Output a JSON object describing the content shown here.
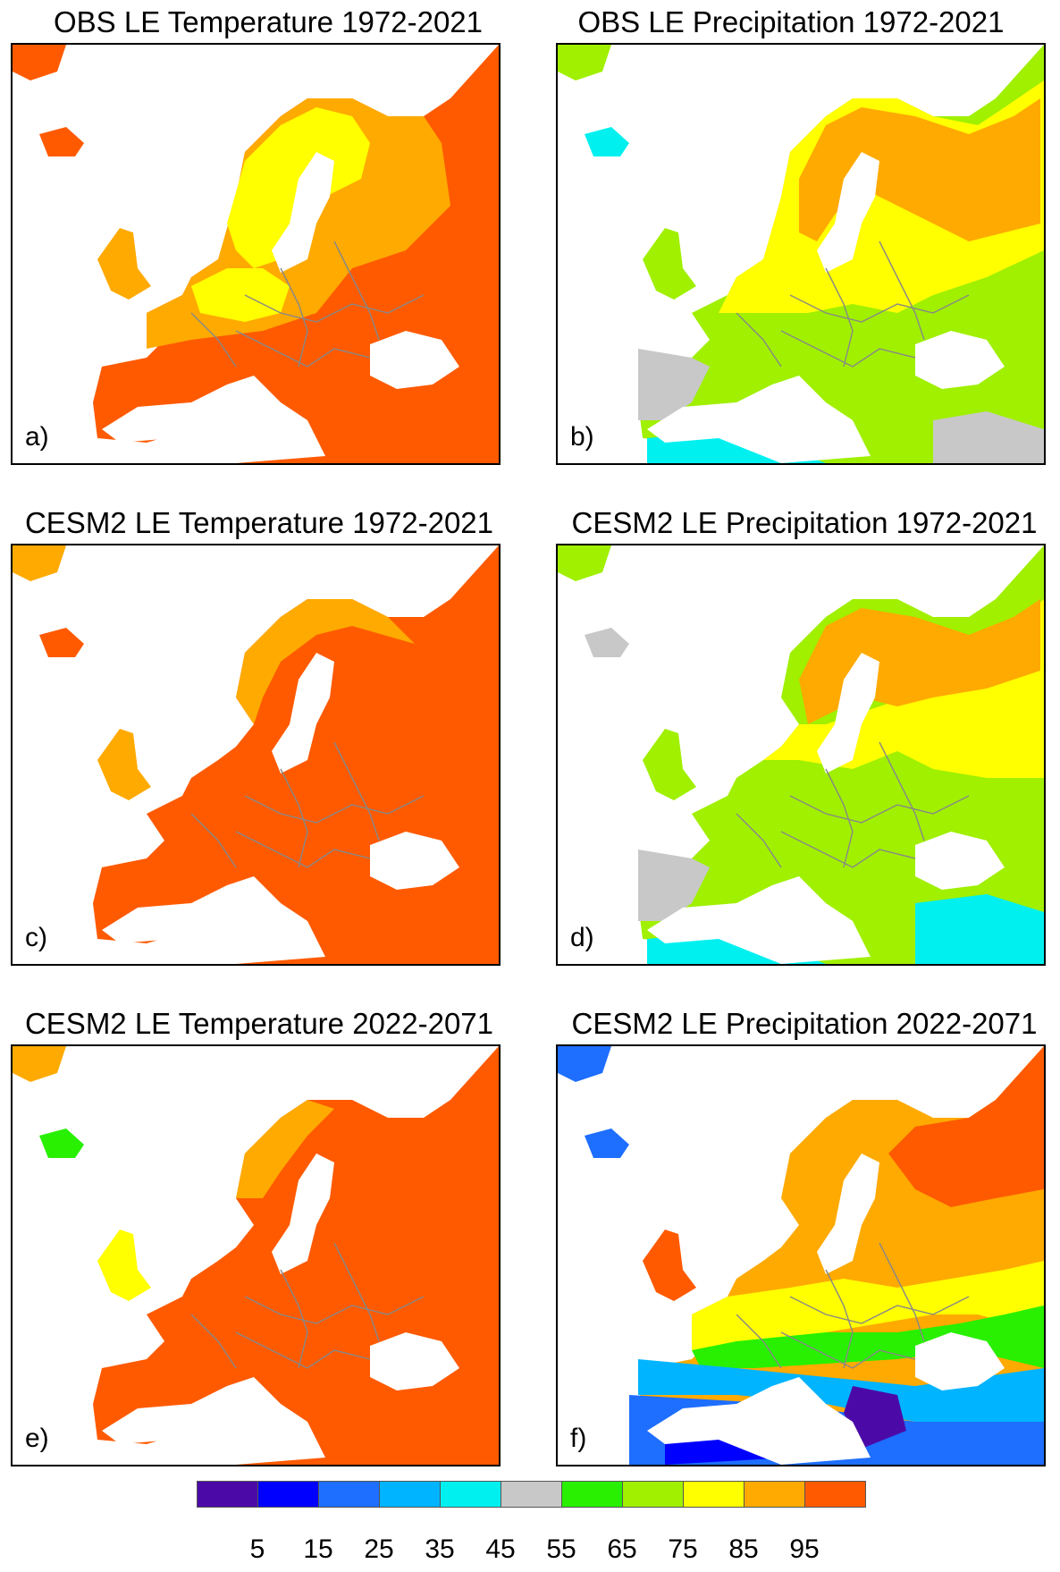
{
  "panels": [
    {
      "title": "OBS LE Temperature 1972-2021",
      "label": "a)",
      "variable": "temperature"
    },
    {
      "title": "OBS LE Precipitation 1972-2021",
      "label": "b)",
      "variable": "precipitation"
    },
    {
      "title": "CESM2 LE Temperature 1972-2021",
      "label": "c)",
      "variable": "temperature"
    },
    {
      "title": "CESM2 LE Precipitation 1972-2021",
      "label": "d)",
      "variable": "precipitation"
    },
    {
      "title": "CESM2 LE Temperature 2022-2071",
      "label": "e)",
      "variable": "temperature"
    },
    {
      "title": "CESM2 LE Precipitation 2022-2071",
      "label": "f)",
      "variable": "precipitation"
    }
  ],
  "colorbar": {
    "colors": [
      "#4b0aa8",
      "#0000ff",
      "#1e6eff",
      "#00b4ff",
      "#00f0f0",
      "#c8c8c8",
      "#28f000",
      "#a0f000",
      "#ffff00",
      "#ffaa00",
      "#ff5a00"
    ],
    "ticks": [
      "5",
      "15",
      "25",
      "35",
      "45",
      "55",
      "65",
      "75",
      "85",
      "95"
    ]
  }
}
